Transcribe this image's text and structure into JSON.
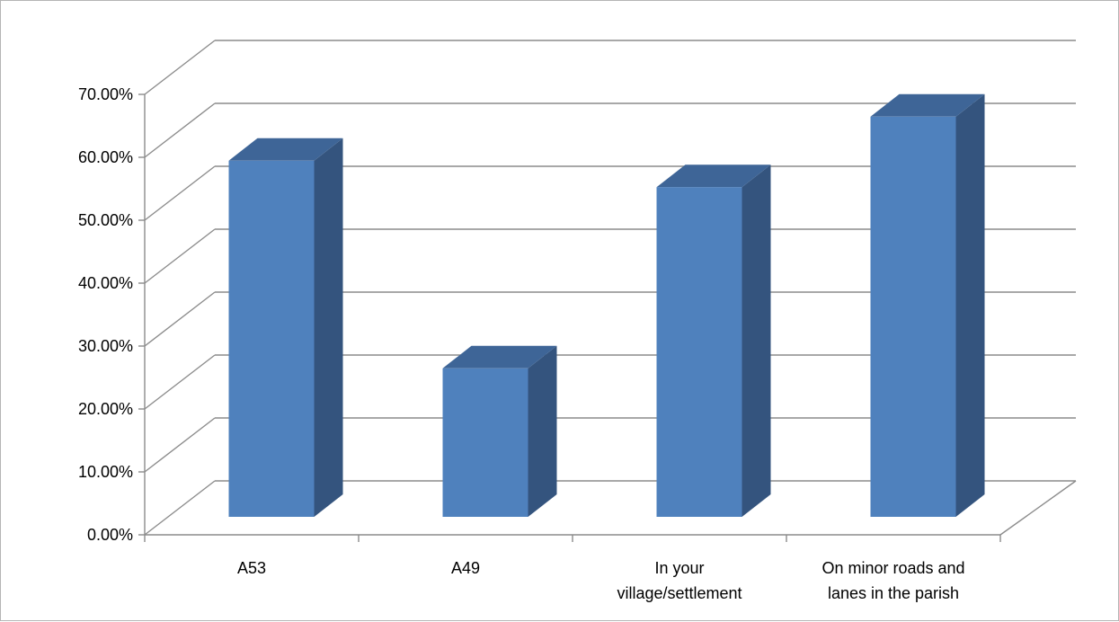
{
  "chart_data": {
    "type": "bar",
    "style": "3d-column",
    "categories": [
      [
        "A53"
      ],
      [
        "A49"
      ],
      [
        "In your",
        "village/settlement"
      ],
      [
        "On minor roads and",
        "lanes in the parish"
      ]
    ],
    "values": [
      0.566,
      0.236,
      0.524,
      0.636
    ],
    "yticks": [
      "0.00%",
      "10.00%",
      "20.00%",
      "30.00%",
      "40.00%",
      "50.00%",
      "60.00%",
      "70.00%"
    ],
    "ylim": [
      0,
      0.7
    ],
    "grid": true,
    "legend": false,
    "title": "",
    "xlabel": "",
    "ylabel": "",
    "colors": {
      "bar_front": "#4f81bd",
      "bar_side": "#34547e",
      "bar_top": "#3e6597",
      "gridline": "#8c8c8c",
      "axis": "#8c8c8c"
    }
  }
}
